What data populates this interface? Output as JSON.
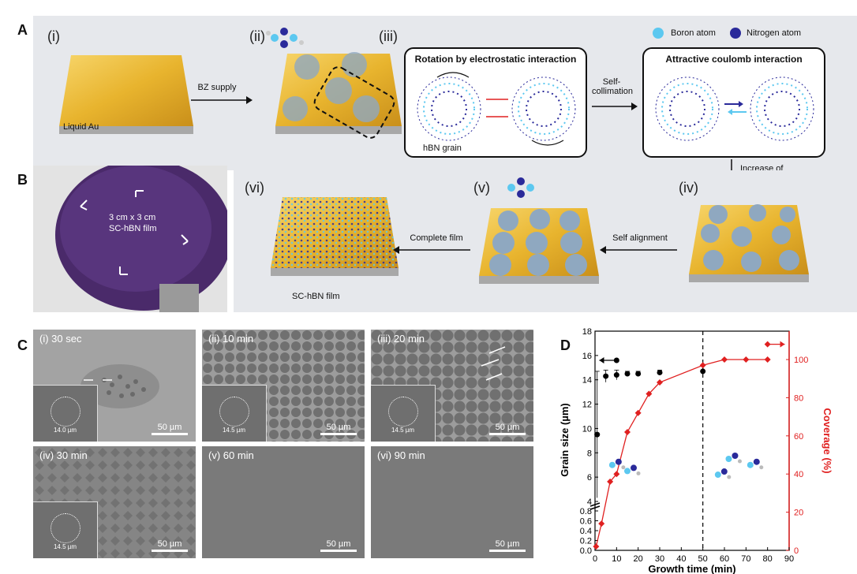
{
  "panels": {
    "A": "A",
    "B": "B",
    "C": "C",
    "D": "D"
  },
  "panelA": {
    "step_i": "(i)",
    "step_ii": "(ii)",
    "step_iii": "(iii)",
    "step_iv": "(iv)",
    "step_v": "(v)",
    "step_vi": "(vi)",
    "liquid_au": "Liquid Au",
    "bz_supply": "BZ supply",
    "box1_title": "Rotation by electrostatic interaction",
    "box2_title": "Attractive coulomb interaction",
    "hbn_grain": "hBN grain",
    "self_collimation": "Self-\ncollimation",
    "legend_boron": "Boron atom",
    "legend_nitrogen": "Nitrogen atom",
    "increase_density": "Increase of\ngrain density",
    "self_alignment": "Self alignment",
    "complete_film": "Complete film",
    "sc_hbn_film": "SC-hBN film",
    "boron_color": "#5cc8f0",
    "nitrogen_color": "#2a2a9a"
  },
  "panelB": {
    "photo_label_line1": "3 cm x 3 cm",
    "photo_label_line2": "SC-hBN film"
  },
  "panelC": {
    "images": [
      {
        "label": "(i) 30 sec",
        "scale": "50 µm",
        "inset": ""
      },
      {
        "label": "(ii) 10 min",
        "scale": "50 µm",
        "inset": "14.5 µm"
      },
      {
        "label": "(iii) 20 min",
        "scale": "50 µm",
        "inset": "14.5 µm"
      },
      {
        "label": "(iv) 30 min",
        "scale": "50 µm",
        "inset": "14.5 µm"
      },
      {
        "label": "(v) 60 min",
        "scale": "50 µm",
        "inset": ""
      },
      {
        "label": "(vi) 90 min",
        "scale": "50 µm",
        "inset": ""
      }
    ],
    "inset_i": "14.0 µm"
  },
  "chart_data": {
    "type": "scatter",
    "xlabel": "Growth time (min)",
    "ylabel_left": "Grain size (µm)",
    "ylabel_right": "Coverage (%)",
    "xlim": [
      0,
      90
    ],
    "xticks": [
      0,
      10,
      20,
      30,
      40,
      50,
      60,
      70,
      80,
      90
    ],
    "left_ticks_upper": [
      4,
      6,
      8,
      10,
      12,
      14,
      16,
      18
    ],
    "left_ticks_lower": [
      0.0,
      0.2,
      0.4,
      0.6,
      0.8
    ],
    "right_ticks": [
      0,
      20,
      40,
      60,
      80,
      100
    ],
    "vline_x": 50,
    "grain_size": {
      "x": [
        1,
        5,
        10,
        15,
        20,
        30,
        50
      ],
      "y": [
        9.5,
        14.3,
        14.4,
        14.5,
        14.5,
        14.6,
        14.7
      ],
      "err": [
        5.2,
        0.5,
        0.4,
        0.2,
        0.2,
        0.2,
        0.0
      ],
      "color": "#000000"
    },
    "coverage": {
      "x": [
        0.5,
        3,
        7,
        10,
        15,
        20,
        25,
        30,
        50,
        60,
        70,
        80
      ],
      "y": [
        2,
        14,
        36,
        40,
        62,
        72,
        82,
        88,
        97,
        100,
        100,
        100
      ],
      "color": "#e02020"
    },
    "left_color": "#000000",
    "right_color": "#e02020"
  }
}
